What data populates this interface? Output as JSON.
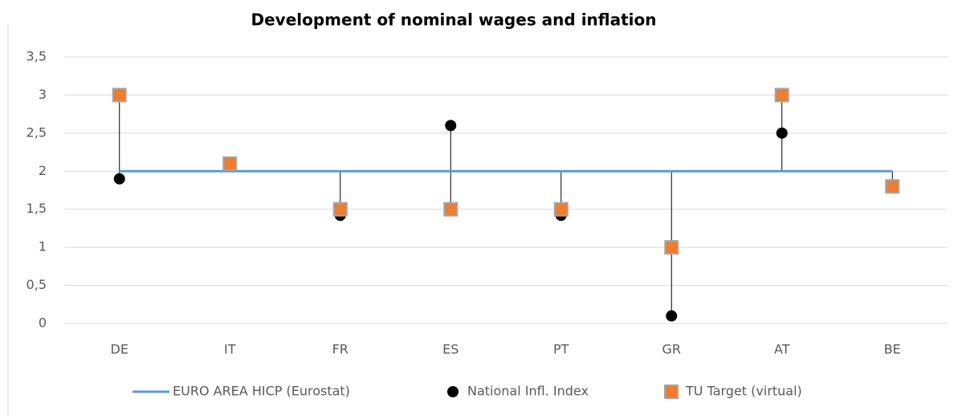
{
  "chart_data": {
    "type": "line-scatter",
    "title": "Development of nominal wages and inflation",
    "categories": [
      "DE",
      "IT",
      "FR",
      "ES",
      "PT",
      "GR",
      "AT",
      "BE"
    ],
    "series": [
      {
        "name": "EURO AREA  HICP (Eurostat)",
        "kind": "line",
        "color": "#5b9bd5",
        "values": [
          2,
          2,
          2,
          2,
          2,
          2,
          2,
          2
        ]
      },
      {
        "name": "National Infl. Index",
        "kind": "circle",
        "color": "#000000",
        "values": [
          1.9,
          2.1,
          1.42,
          2.6,
          1.42,
          0.1,
          2.5,
          1.8
        ]
      },
      {
        "name": "TU Target (virtual)",
        "kind": "square",
        "color": "#ed7d31",
        "values": [
          3,
          2.1,
          1.5,
          1.5,
          1.5,
          1,
          3,
          1.8
        ]
      }
    ],
    "ylim": [
      0,
      3.5
    ],
    "yticks": [
      0,
      {
        "value": 0.5,
        "label": "0,5"
      },
      1,
      {
        "value": 1.5,
        "label": "1,5"
      },
      2,
      {
        "value": 2.5,
        "label": "2,5"
      },
      3,
      {
        "value": 3.5,
        "label": "3,5"
      }
    ],
    "grid": true,
    "high_low_lines": true,
    "legend": "bottom"
  }
}
